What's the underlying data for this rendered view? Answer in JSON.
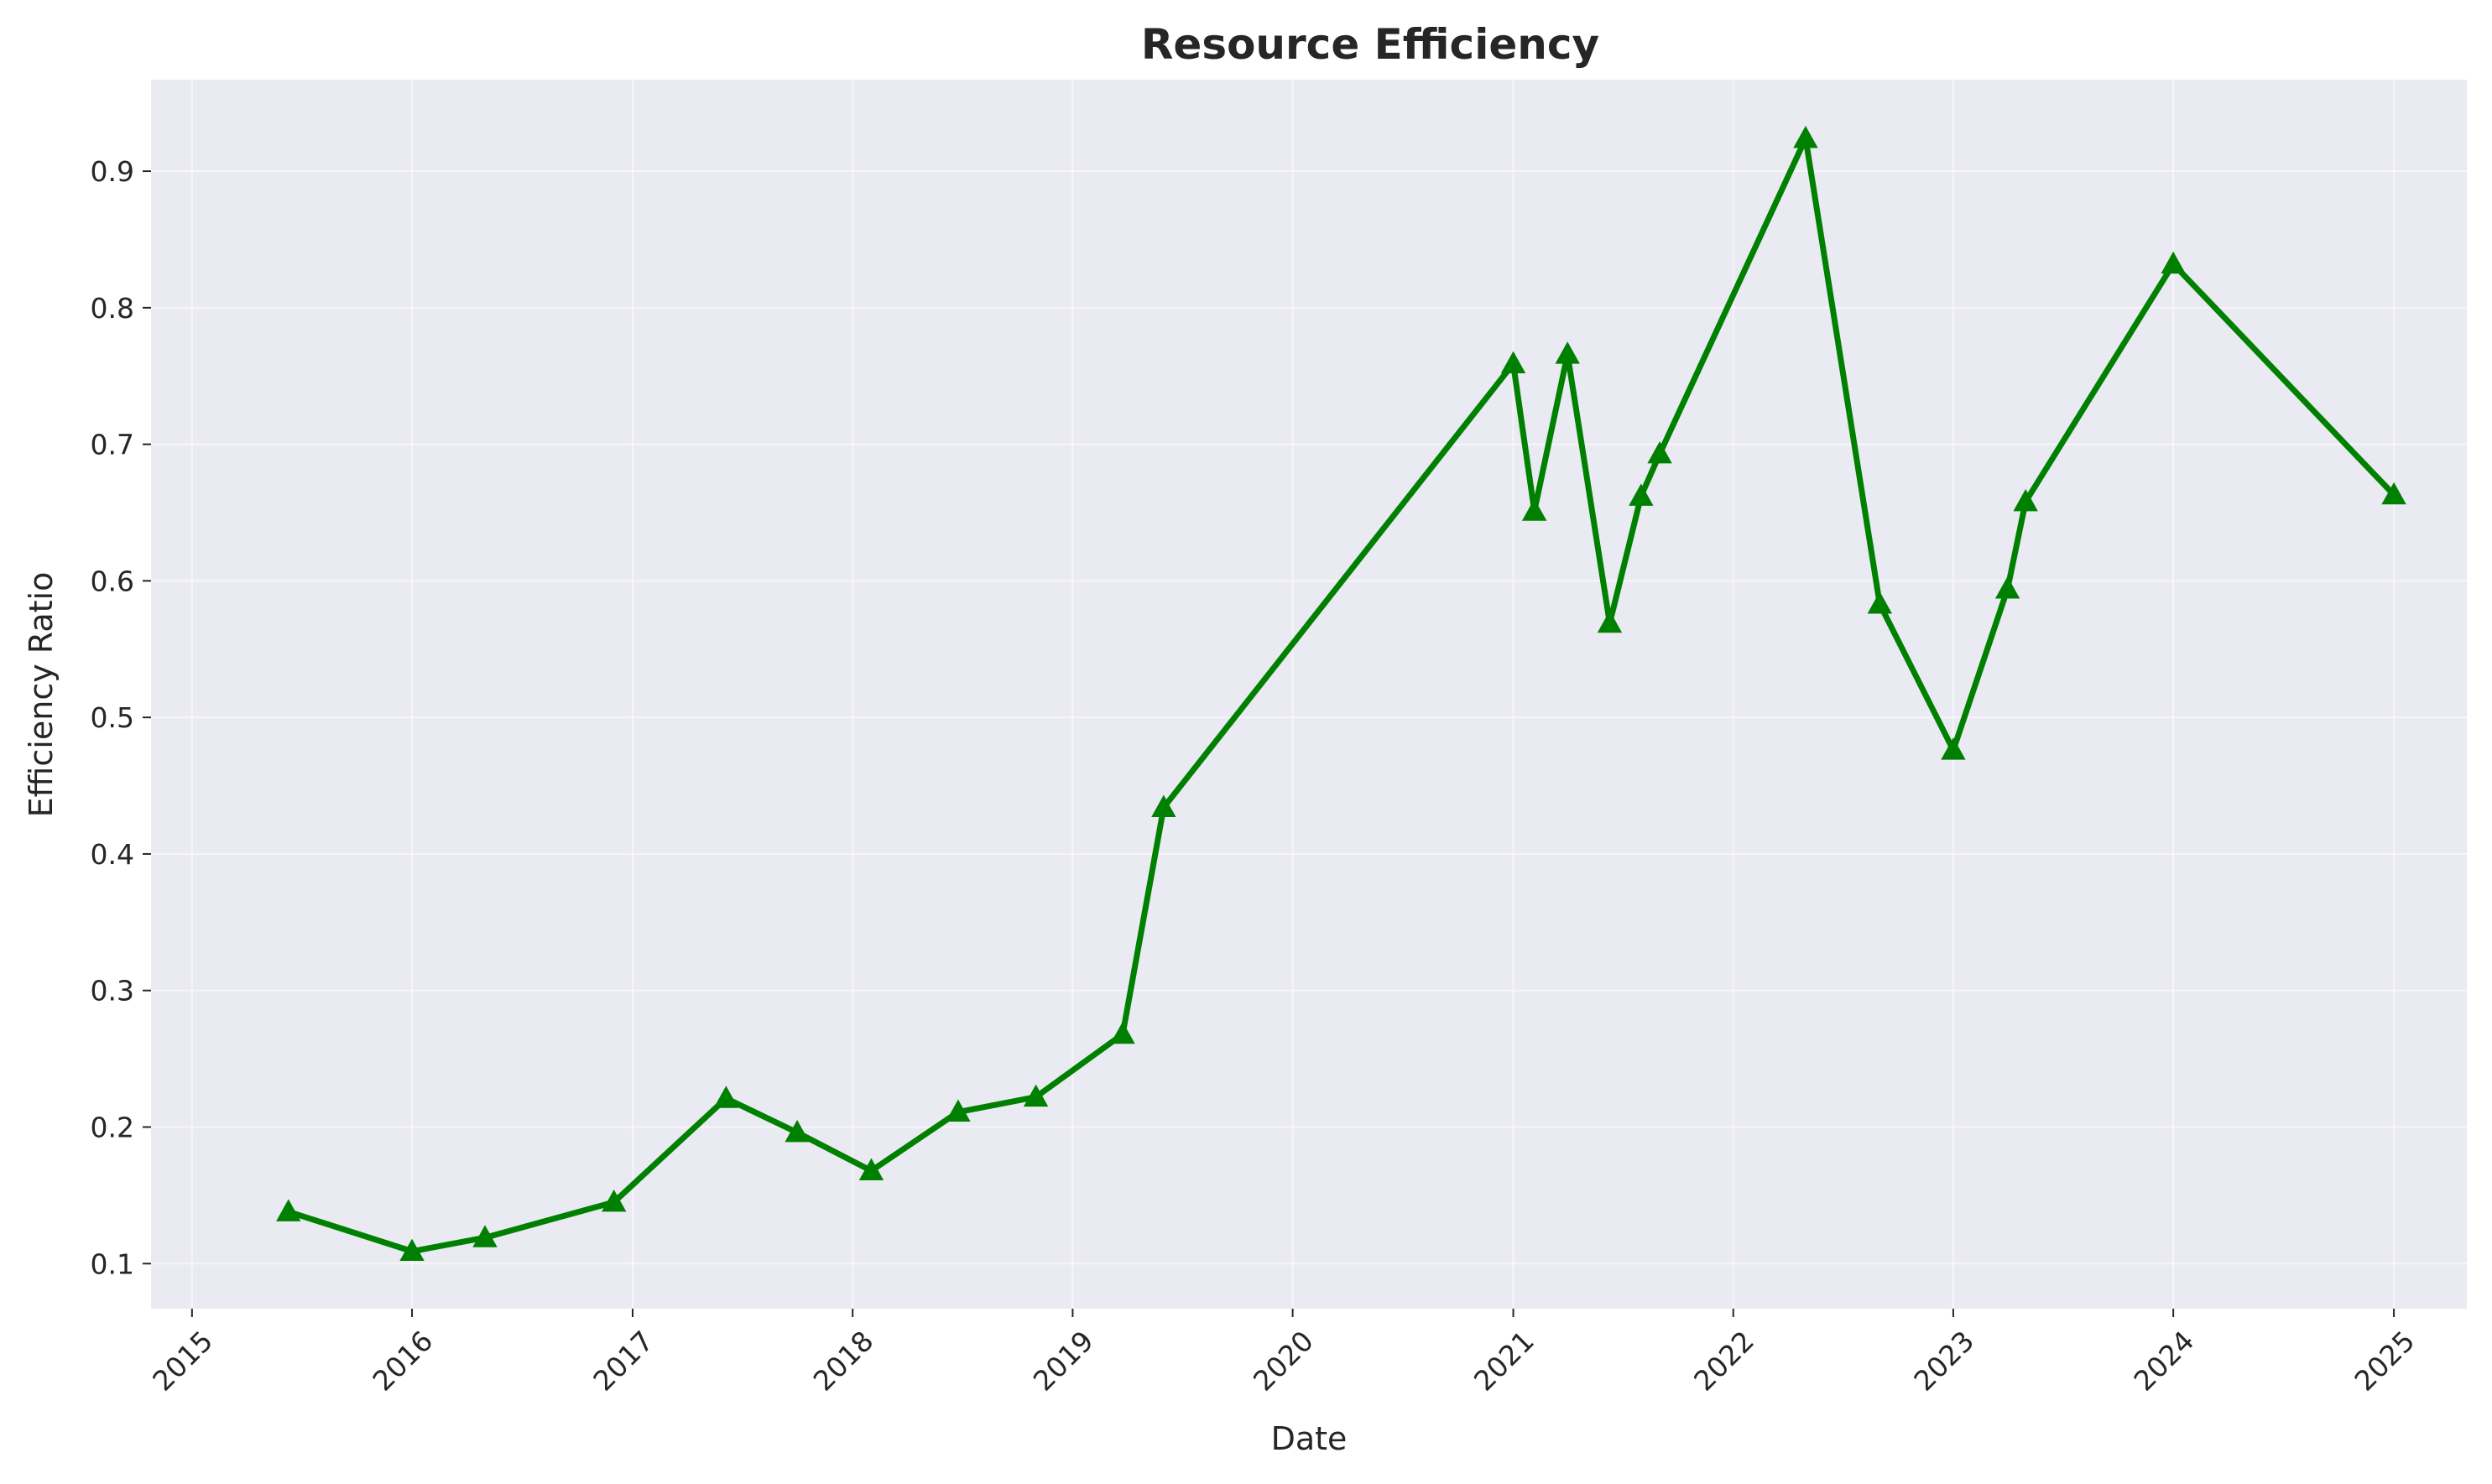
{
  "chart_data": {
    "type": "line",
    "title": "Resource Efficiency",
    "xlabel": "Date",
    "ylabel": "Efficiency Ratio",
    "x_axis_type": "date",
    "xlim": [
      "2014-10-25",
      "2025-05-02"
    ],
    "ylim": [
      0.067,
      0.967
    ],
    "x_ticks": [
      "2015-01-01",
      "2016-01-01",
      "2017-01-01",
      "2018-01-01",
      "2019-01-01",
      "2020-01-01",
      "2021-01-01",
      "2022-01-01",
      "2023-01-01",
      "2024-01-01",
      "2025-01-01"
    ],
    "x_tick_labels": [
      "2015",
      "2016",
      "2017",
      "2018",
      "2019",
      "2020",
      "2021",
      "2022",
      "2023",
      "2024",
      "2025"
    ],
    "y_ticks": [
      0.1,
      0.2,
      0.3,
      0.4,
      0.5,
      0.6,
      0.7,
      0.8,
      0.9
    ],
    "y_tick_labels": [
      "0.1",
      "0.2",
      "0.3",
      "0.4",
      "0.5",
      "0.6",
      "0.7",
      "0.8",
      "0.9"
    ],
    "grid": true,
    "legend": "none",
    "background": "#eaeaf2",
    "series": [
      {
        "color": "#008000",
        "marker": "triangle-up",
        "points": [
          {
            "x": "2015-06-10",
            "y": 0.138
          },
          {
            "x": "2016-01-01",
            "y": 0.109
          },
          {
            "x": "2016-05-01",
            "y": 0.119
          },
          {
            "x": "2016-12-01",
            "y": 0.145
          },
          {
            "x": "2017-06-05",
            "y": 0.221
          },
          {
            "x": "2017-10-01",
            "y": 0.196
          },
          {
            "x": "2018-02-01",
            "y": 0.168
          },
          {
            "x": "2018-06-25",
            "y": 0.211
          },
          {
            "x": "2018-11-01",
            "y": 0.222
          },
          {
            "x": "2019-03-25",
            "y": 0.268
          },
          {
            "x": "2019-06-01",
            "y": 0.434
          },
          {
            "x": "2021-01-01",
            "y": 0.759
          },
          {
            "x": "2021-02-05",
            "y": 0.651
          },
          {
            "x": "2021-04-01",
            "y": 0.766
          },
          {
            "x": "2021-06-10",
            "y": 0.569
          },
          {
            "x": "2021-08-01",
            "y": 0.662
          },
          {
            "x": "2021-09-01",
            "y": 0.693
          },
          {
            "x": "2022-05-01",
            "y": 0.924
          },
          {
            "x": "2022-09-01",
            "y": 0.583
          },
          {
            "x": "2023-01-01",
            "y": 0.476
          },
          {
            "x": "2023-04-01",
            "y": 0.594
          },
          {
            "x": "2023-05-01",
            "y": 0.658
          },
          {
            "x": "2024-01-01",
            "y": 0.832
          },
          {
            "x": "2025-01-01",
            "y": 0.663
          }
        ]
      }
    ]
  }
}
